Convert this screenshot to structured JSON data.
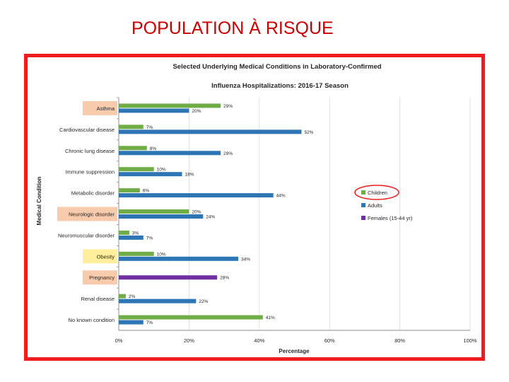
{
  "slide": {
    "title": "POPULATION À RISQUE"
  },
  "colors": {
    "frame": "#ee1c1c",
    "children": "#70ad47",
    "adults": "#2e75b6",
    "females": "#7030a0",
    "highlight_orange": "#f8cbad",
    "highlight_yellow": "#ffef9c",
    "legend_circle": "#ee1c1c"
  },
  "chart_data": {
    "type": "bar",
    "orientation": "horizontal",
    "title": "Selected Underlying Medical Conditions in Laboratory-Confirmed",
    "subtitle": "Influenza Hospitalizations: 2016-17 Season",
    "xlabel": "Percentage",
    "ylabel": "Medical Condition",
    "xlim": [
      0,
      100
    ],
    "x_ticks": [
      "0%",
      "20%",
      "40%",
      "60%",
      "80%",
      "100%"
    ],
    "legend_position": "right",
    "categories": [
      "Asthma",
      "Cardiovascular disease",
      "Chronic lung disease",
      "Immune suppression",
      "Metabolic disorder",
      "Neurologic disorder",
      "Neuromuscular disorder",
      "Obesity",
      "Pregnancy",
      "Renal disease",
      "No known condition"
    ],
    "highlighted_categories": {
      "Asthma": "orange",
      "Neurologic disorder": "orange",
      "Obesity": "yellow",
      "Pregnancy": "orange"
    },
    "series": [
      {
        "name": "Children",
        "color": "#70ad47",
        "values": [
          29,
          7,
          8,
          10,
          6,
          20,
          3,
          10,
          null,
          2,
          41
        ],
        "labels": [
          "29%",
          "7%",
          "8%",
          "10%",
          "6%",
          "20%",
          "3%",
          "10%",
          "",
          "2%",
          "41%"
        ]
      },
      {
        "name": "Adults",
        "color": "#2e75b6",
        "values": [
          20,
          52,
          29,
          18,
          44,
          24,
          7,
          34,
          null,
          22,
          7
        ],
        "labels": [
          "20%",
          "52%",
          "29%",
          "18%",
          "44%",
          "24%",
          "7%",
          "34%",
          "",
          "22%",
          "7%"
        ]
      },
      {
        "name": "Females (15-44 yr)",
        "color": "#7030a0",
        "values": [
          null,
          null,
          null,
          null,
          null,
          null,
          null,
          null,
          28,
          null,
          null
        ],
        "labels": [
          "",
          "",
          "",
          "",
          "",
          "",
          "",
          "",
          "28%",
          "",
          ""
        ]
      }
    ]
  }
}
